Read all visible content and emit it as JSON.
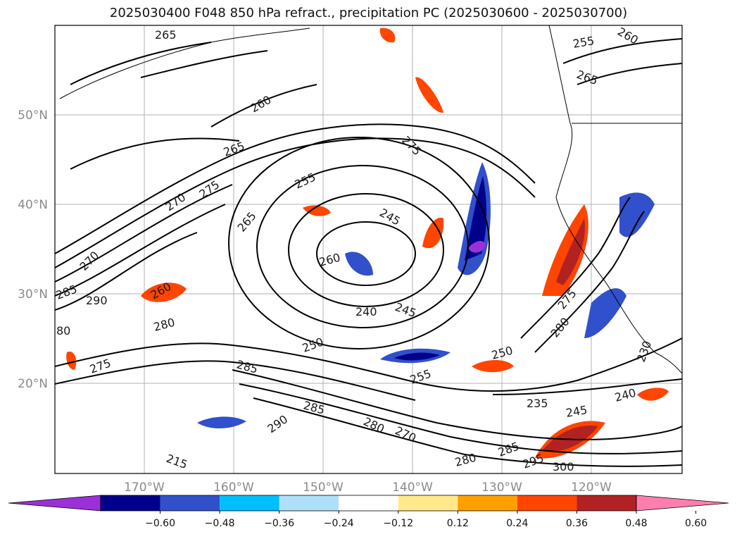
{
  "title": "2025030400 F048 850 hPa refract., precipitation PC (2025030600 - 2025030700)",
  "lat_labels": [
    "50°N",
    "40°N",
    "30°N",
    "20°N"
  ],
  "lon_labels": [
    "170°W",
    "160°W",
    "150°W",
    "140°W",
    "130°W",
    "120°W"
  ],
  "contour_labels": [
    "265",
    "260",
    "265",
    "270",
    "275",
    "255",
    "245",
    "260",
    "265",
    "280",
    "290",
    "285",
    "260",
    "240",
    "245",
    "250",
    "255",
    "285",
    "285",
    "290",
    "280",
    "270",
    "275",
    "280",
    "275",
    "285",
    "295",
    "300",
    "235",
    "245",
    "250",
    "240",
    "230",
    "275",
    "280",
    "255",
    "260",
    "265",
    "270",
    "80",
    "215"
  ],
  "colorbar": {
    "ticks": [
      "−0.60",
      "−0.48",
      "−0.36",
      "−0.24",
      "−0.12",
      "0.12",
      "0.24",
      "0.36",
      "0.48",
      "0.60"
    ],
    "colors": [
      "#9b30d9",
      "#00008b",
      "#3050cc",
      "#00bfff",
      "#aee0f8",
      "#ffffff",
      "#ffe98a",
      "#ff9f00",
      "#ff4500",
      "#b22222",
      "#ff7eb0"
    ]
  }
}
